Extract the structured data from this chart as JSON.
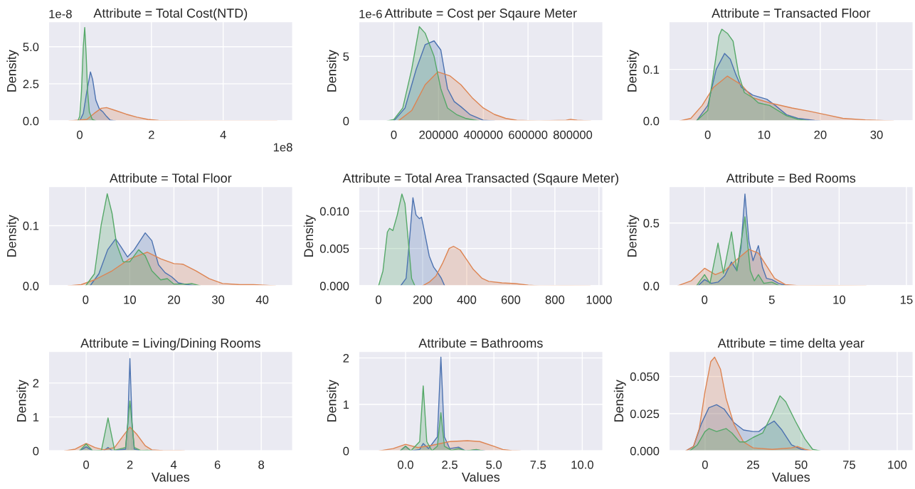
{
  "chart_data": [
    {
      "type": "area",
      "title": "Attribute = Total Cost(NTD)",
      "ylabel": "Density",
      "grid": true,
      "xlim": [
        -0.87,
        5.94
      ],
      "xticks": [
        0,
        2,
        4
      ],
      "ylim": [
        0,
        6.7
      ],
      "yticks": [
        {
          "value": 0,
          "label": "0.0"
        },
        2.5,
        {
          "value": 5,
          "label": "5.0"
        }
      ],
      "annotations": [
        "1e-8",
        "1e8"
      ],
      "series": [
        {
          "color": "#4c72b0",
          "x": [
            0,
            0.1,
            0.2,
            0.3,
            0.36,
            0.45,
            0.55,
            0.65,
            0.75,
            0.85,
            1.0
          ],
          "values": [
            0,
            0.5,
            2.0,
            3.3,
            2.8,
            1.4,
            0.8,
            0.6,
            0.3,
            0.05,
            0
          ]
        },
        {
          "color": "#dd8452",
          "x": [
            -0.3,
            0.2,
            0.4,
            0.6,
            0.75,
            1.0,
            1.3,
            1.6,
            1.9,
            2.2,
            2.6,
            3.5,
            5.5
          ],
          "values": [
            0,
            0.1,
            0.5,
            0.85,
            0.9,
            0.7,
            0.45,
            0.25,
            0.1,
            0.03,
            0.01,
            0,
            0
          ]
        },
        {
          "color": "#55a868",
          "x": [
            -0.05,
            0,
            0.05,
            0.1,
            0.14,
            0.18,
            0.22,
            0.27,
            0.35,
            0.45
          ],
          "values": [
            0,
            0.3,
            2.0,
            5.0,
            6.3,
            4.5,
            2.0,
            0.6,
            0.1,
            0
          ]
        }
      ]
    },
    {
      "type": "area",
      "title": "Attribute = Cost per Sqaure Meter",
      "ylabel": "Density",
      "grid": true,
      "xlim": [
        -157000,
        935000
      ],
      "xticks": [
        0,
        200000,
        400000,
        600000,
        800000
      ],
      "ylim": [
        0,
        7.7
      ],
      "yticks": [
        0,
        5
      ],
      "annotations": [
        "1e-6"
      ],
      "series": [
        {
          "color": "#4c72b0",
          "x": [
            0,
            50000,
            100000,
            140000,
            180000,
            210000,
            240000,
            270000,
            300000,
            340000,
            400000,
            450000
          ],
          "values": [
            0,
            1.0,
            4.0,
            5.9,
            6.2,
            5.5,
            2.5,
            1.5,
            1.1,
            0.5,
            0.05,
            0
          ]
        },
        {
          "color": "#dd8452",
          "x": [
            20000,
            80000,
            140000,
            197000,
            250000,
            300000,
            350000,
            400000,
            450000,
            500000,
            550000,
            650000,
            770000,
            790000,
            820000,
            880000
          ],
          "values": [
            0,
            0.8,
            2.8,
            3.8,
            3.5,
            2.8,
            1.8,
            1.0,
            0.5,
            0.2,
            0.05,
            0,
            0.05,
            0.12,
            0.05,
            0
          ]
        },
        {
          "color": "#55a868",
          "x": [
            -30000,
            0,
            40000,
            80000,
            114000,
            140000,
            180000,
            210000,
            240000,
            280000,
            320000,
            380000
          ],
          "values": [
            0,
            0.1,
            1.0,
            4.0,
            7.3,
            6.8,
            5.0,
            2.5,
            1.0,
            0.5,
            0.2,
            0
          ]
        }
      ]
    },
    {
      "type": "area",
      "title": "Attribute = Transacted Floor",
      "ylabel": "Density",
      "grid": true,
      "xlim": [
        -6.9,
        36.5
      ],
      "xticks": [
        0,
        10,
        20,
        30
      ],
      "ylim": [
        0,
        0.193
      ],
      "yticks": [
        {
          "value": 0,
          "label": "0.0"
        },
        0.1
      ],
      "series": [
        {
          "color": "#4c72b0",
          "x": [
            -2,
            0,
            1.5,
            3,
            4,
            5,
            6,
            8,
            10.5,
            12,
            14,
            16,
            19,
            20
          ],
          "values": [
            0,
            0.03,
            0.1,
            0.131,
            0.12,
            0.09,
            0.065,
            0.05,
            0.042,
            0.03,
            0.012,
            0.005,
            0.001,
            0
          ]
        },
        {
          "color": "#dd8452",
          "x": [
            -5,
            -3,
            -1,
            1,
            3.5,
            6,
            8,
            11,
            15,
            18,
            21,
            24,
            28,
            33
          ],
          "values": [
            0,
            0.005,
            0.03,
            0.065,
            0.087,
            0.07,
            0.045,
            0.035,
            0.025,
            0.019,
            0.012,
            0.005,
            0.002,
            0
          ]
        },
        {
          "color": "#55a868",
          "x": [
            -2,
            0,
            1,
            2,
            2.5,
            3.5,
            4.5,
            5.5,
            6.5,
            8,
            9,
            11,
            12.5,
            14,
            16,
            18
          ],
          "values": [
            0,
            0.02,
            0.09,
            0.165,
            0.178,
            0.17,
            0.155,
            0.09,
            0.055,
            0.045,
            0.035,
            0.03,
            0.02,
            0.01,
            0.003,
            0
          ]
        }
      ]
    },
    {
      "type": "area",
      "title": "Attribute = Total Floor",
      "ylabel": "Density",
      "grid": true,
      "xlim": [
        -8.4,
        46.9
      ],
      "xticks": [
        0,
        10,
        20,
        30,
        40
      ],
      "ylim": [
        0,
        0.165
      ],
      "yticks": [
        {
          "value": 0,
          "label": "0.0"
        },
        0.1
      ],
      "series": [
        {
          "color": "#4c72b0",
          "x": [
            1,
            3,
            5,
            6.8,
            8,
            9.5,
            11,
            13.5,
            15,
            16.5,
            18,
            19.5,
            21,
            23,
            25
          ],
          "values": [
            0,
            0.02,
            0.06,
            0.078,
            0.065,
            0.048,
            0.06,
            0.088,
            0.075,
            0.035,
            0.022,
            0.015,
            0.005,
            0.002,
            0
          ]
        },
        {
          "color": "#dd8452",
          "x": [
            -4,
            -1,
            2,
            6,
            10,
            14,
            17,
            20,
            22,
            25,
            28,
            31,
            35,
            38,
            41,
            43
          ],
          "values": [
            0,
            0.002,
            0.01,
            0.025,
            0.045,
            0.056,
            0.045,
            0.037,
            0.036,
            0.025,
            0.012,
            0.004,
            0.002,
            0.002,
            0.001,
            0
          ]
        },
        {
          "color": "#55a868",
          "x": [
            0,
            2,
            3.5,
            4.9,
            6,
            7,
            8.5,
            10,
            12,
            13.5,
            15,
            17,
            18.5,
            20,
            23,
            24,
            26
          ],
          "values": [
            0,
            0.02,
            0.1,
            0.153,
            0.12,
            0.07,
            0.04,
            0.04,
            0.06,
            0.05,
            0.025,
            0.01,
            0.012,
            0.003,
            0.003,
            0.004,
            0
          ]
        }
      ]
    },
    {
      "type": "area",
      "title": "Attribute = Total Area Transacted (Sqaure Meter)",
      "ylabel": "Density",
      "grid": true,
      "xlim": [
        -90,
        1018
      ],
      "xticks": [
        0,
        200,
        400,
        600,
        800,
        1000
      ],
      "ylim": [
        0,
        0.0133
      ],
      "yticks": [
        {
          "value": 0,
          "label": "0.000"
        },
        {
          "value": 0.005,
          "label": "0.005"
        },
        {
          "value": 0.01,
          "label": "0.010"
        }
      ],
      "series": [
        {
          "color": "#4c72b0",
          "x": [
            100,
            125,
            140,
            156,
            170,
            185,
            195,
            210,
            230,
            250,
            270,
            285,
            300
          ],
          "values": [
            0,
            0.001,
            0.006,
            0.0118,
            0.0095,
            0.009,
            0.0092,
            0.007,
            0.004,
            0.0025,
            0.0017,
            0.001,
            0
          ]
        },
        {
          "color": "#dd8452",
          "x": [
            200,
            230,
            260,
            290,
            320,
            340,
            370,
            400,
            430,
            470,
            500,
            560,
            620,
            680,
            730,
            850,
            960
          ],
          "values": [
            0,
            0.0005,
            0.0013,
            0.003,
            0.005,
            0.0053,
            0.0048,
            0.0035,
            0.0022,
            0.001,
            0.0006,
            0.0004,
            0.0003,
            0.0001,
            0,
            3e-05,
            0
          ]
        },
        {
          "color": "#55a868",
          "x": [
            0,
            20,
            40,
            50,
            65,
            85,
            106,
            120,
            135,
            150,
            165
          ],
          "values": [
            0,
            0.002,
            0.0072,
            0.0077,
            0.0074,
            0.0095,
            0.0123,
            0.011,
            0.006,
            0.001,
            0
          ]
        }
      ]
    },
    {
      "type": "area",
      "title": "Attribute = Bed Rooms",
      "ylabel": "Density",
      "grid": true,
      "xlim": [
        -2.65,
        15.5
      ],
      "xticks": [
        0,
        5,
        10,
        15
      ],
      "ylim": [
        0,
        0.79
      ],
      "yticks": [
        {
          "value": 0,
          "label": "0.0"
        },
        0.5
      ],
      "series": [
        {
          "color": "#4c72b0",
          "x": [
            -0.5,
            0,
            0.5,
            1,
            1.5,
            2,
            2.4,
            2.7,
            3,
            3.3,
            3.6,
            4,
            4.3,
            4.6,
            5,
            5.5,
            6,
            6.5
          ],
          "values": [
            0,
            0.05,
            0.02,
            0.03,
            0.08,
            0.19,
            0.12,
            0.3,
            0.73,
            0.35,
            0.2,
            0.32,
            0.15,
            0.06,
            0.05,
            0.02,
            0.005,
            0
          ]
        },
        {
          "color": "#dd8452",
          "x": [
            -2,
            -1,
            0,
            0.8,
            1.5,
            2.3,
            3.3,
            4,
            4.6,
            5.2,
            6,
            7,
            9,
            11,
            12
          ],
          "values": [
            0,
            0.04,
            0.14,
            0.09,
            0.12,
            0.2,
            0.29,
            0.26,
            0.16,
            0.06,
            0.01,
            0.002,
            0.003,
            0.002,
            0
          ]
        },
        {
          "color": "#55a868",
          "x": [
            -0.6,
            0,
            0.4,
            1,
            1.4,
            2,
            2.4,
            3,
            3.4,
            3.7,
            4,
            4.4,
            5,
            5.5,
            6
          ],
          "values": [
            0,
            0.09,
            0.02,
            0.34,
            0.1,
            0.43,
            0.12,
            0.55,
            0.12,
            0.04,
            0.09,
            0.02,
            0.03,
            0.005,
            0
          ]
        }
      ]
    },
    {
      "type": "area",
      "title": "Attribute = Living/Dining Rooms",
      "ylabel": "Density",
      "xlabel": "Values",
      "grid": true,
      "xlim": [
        -1.72,
        9.44
      ],
      "xticks": [
        0,
        2,
        4,
        6,
        8
      ],
      "ylim": [
        0,
        2.93
      ],
      "yticks": [
        0,
        1,
        2
      ],
      "series": [
        {
          "color": "#4c72b0",
          "x": [
            -0.3,
            0,
            0.3,
            0.8,
            1,
            1.2,
            1.8,
            1.9,
            2,
            2.1,
            2.2,
            2.5,
            3,
            3.3
          ],
          "values": [
            0,
            0.12,
            0,
            0,
            0.1,
            0,
            0.05,
            0.8,
            2.72,
            0.8,
            0.05,
            0,
            0.01,
            0
          ]
        },
        {
          "color": "#dd8452",
          "x": [
            -1,
            -0.5,
            0,
            0.4,
            0.8,
            1.3,
            1.7,
            2,
            2.3,
            2.7,
            3,
            3.5,
            4,
            4.5
          ],
          "values": [
            0,
            0.05,
            0.22,
            0.1,
            0.03,
            0.1,
            0.45,
            0.7,
            0.5,
            0.15,
            0.03,
            0.01,
            0.005,
            0
          ]
        },
        {
          "color": "#55a868",
          "x": [
            -0.3,
            0,
            0.3,
            0.7,
            1,
            1.3,
            1.8,
            2,
            2.2,
            2.5,
            2.8,
            3
          ],
          "values": [
            0,
            0.2,
            0,
            0.02,
            0.97,
            0.02,
            0.1,
            1.47,
            0.1,
            0.01,
            0.02,
            0
          ]
        }
      ]
    },
    {
      "type": "area",
      "title": "Attribute = Bathrooms",
      "ylabel": "Density",
      "xlabel": "Values",
      "grid": true,
      "xlim": [
        -2.65,
        11.17
      ],
      "xticks": [
        {
          "value": 0,
          "label": "0.0"
        },
        2.5,
        {
          "value": 5,
          "label": "5.0"
        },
        7.5,
        {
          "value": 10,
          "label": "10.0"
        }
      ],
      "ylim": [
        0,
        2.14
      ],
      "yticks": [
        0,
        1,
        2
      ],
      "series": [
        {
          "color": "#4c72b0",
          "x": [
            -0.3,
            0,
            0.3,
            0.8,
            1,
            1.3,
            1.8,
            2,
            2.2,
            2.5,
            3,
            3.4,
            4,
            4.5
          ],
          "values": [
            0,
            0.1,
            0,
            0.03,
            0.16,
            0.05,
            0.3,
            2.02,
            0.3,
            0.05,
            0.08,
            0,
            0.02,
            0
          ]
        },
        {
          "color": "#dd8452",
          "x": [
            -1.5,
            -0.7,
            0,
            0.7,
            1.5,
            2.5,
            3.5,
            4.2,
            5,
            5.5,
            6,
            6.5
          ],
          "values": [
            0,
            0.05,
            0.14,
            0.07,
            0.12,
            0.2,
            0.22,
            0.2,
            0.1,
            0.03,
            0.005,
            0
          ]
        },
        {
          "color": "#55a868",
          "x": [
            -0.3,
            0,
            0.3,
            0.8,
            1,
            1.2,
            1.5,
            1.8,
            2,
            2.2,
            2.6,
            3,
            3.4,
            4,
            4.4
          ],
          "values": [
            0,
            0.1,
            0,
            0.2,
            1.4,
            0.2,
            0,
            0.1,
            0.82,
            0.1,
            0.01,
            0.05,
            0,
            0.03,
            0
          ]
        }
      ]
    },
    {
      "type": "area",
      "title": "Attribute = time delta year",
      "ylabel": "Density",
      "xlabel": "Values",
      "grid": true,
      "xlim": [
        -18.8,
        108.3
      ],
      "xticks": [
        0,
        25,
        50,
        75,
        100
      ],
      "ylim": [
        0,
        0.0668
      ],
      "yticks": [
        {
          "value": 0,
          "label": "0.000"
        },
        0.025,
        {
          "value": 0.05,
          "label": "0.050"
        }
      ],
      "series": [
        {
          "color": "#4c72b0",
          "x": [
            -10,
            -6,
            -2,
            2,
            6,
            10,
            15,
            20,
            25,
            28,
            32,
            36,
            40,
            45,
            50,
            55
          ],
          "values": [
            0,
            0.003,
            0.018,
            0.029,
            0.031,
            0.028,
            0.019,
            0.014,
            0.013,
            0.013,
            0.017,
            0.02,
            0.014,
            0.004,
            0.001,
            0
          ]
        },
        {
          "color": "#dd8452",
          "x": [
            -10,
            -6,
            -3,
            0,
            3,
            5,
            8,
            11,
            15,
            20,
            25,
            35,
            45,
            48,
            52,
            56
          ],
          "values": [
            0,
            0.003,
            0.015,
            0.04,
            0.06,
            0.063,
            0.055,
            0.035,
            0.018,
            0.006,
            0.002,
            0.001,
            0.002,
            0.003,
            0.001,
            0
          ]
        },
        {
          "color": "#55a868",
          "x": [
            -8,
            -4,
            0,
            2,
            6,
            11,
            14,
            18,
            21,
            25,
            30,
            35,
            39,
            42,
            47,
            52,
            56,
            60
          ],
          "values": [
            0,
            0.004,
            0.013,
            0.015,
            0.013,
            0.015,
            0.012,
            0.006,
            0.006,
            0.009,
            0.012,
            0.025,
            0.037,
            0.033,
            0.02,
            0.008,
            0.001,
            0
          ]
        }
      ]
    }
  ]
}
